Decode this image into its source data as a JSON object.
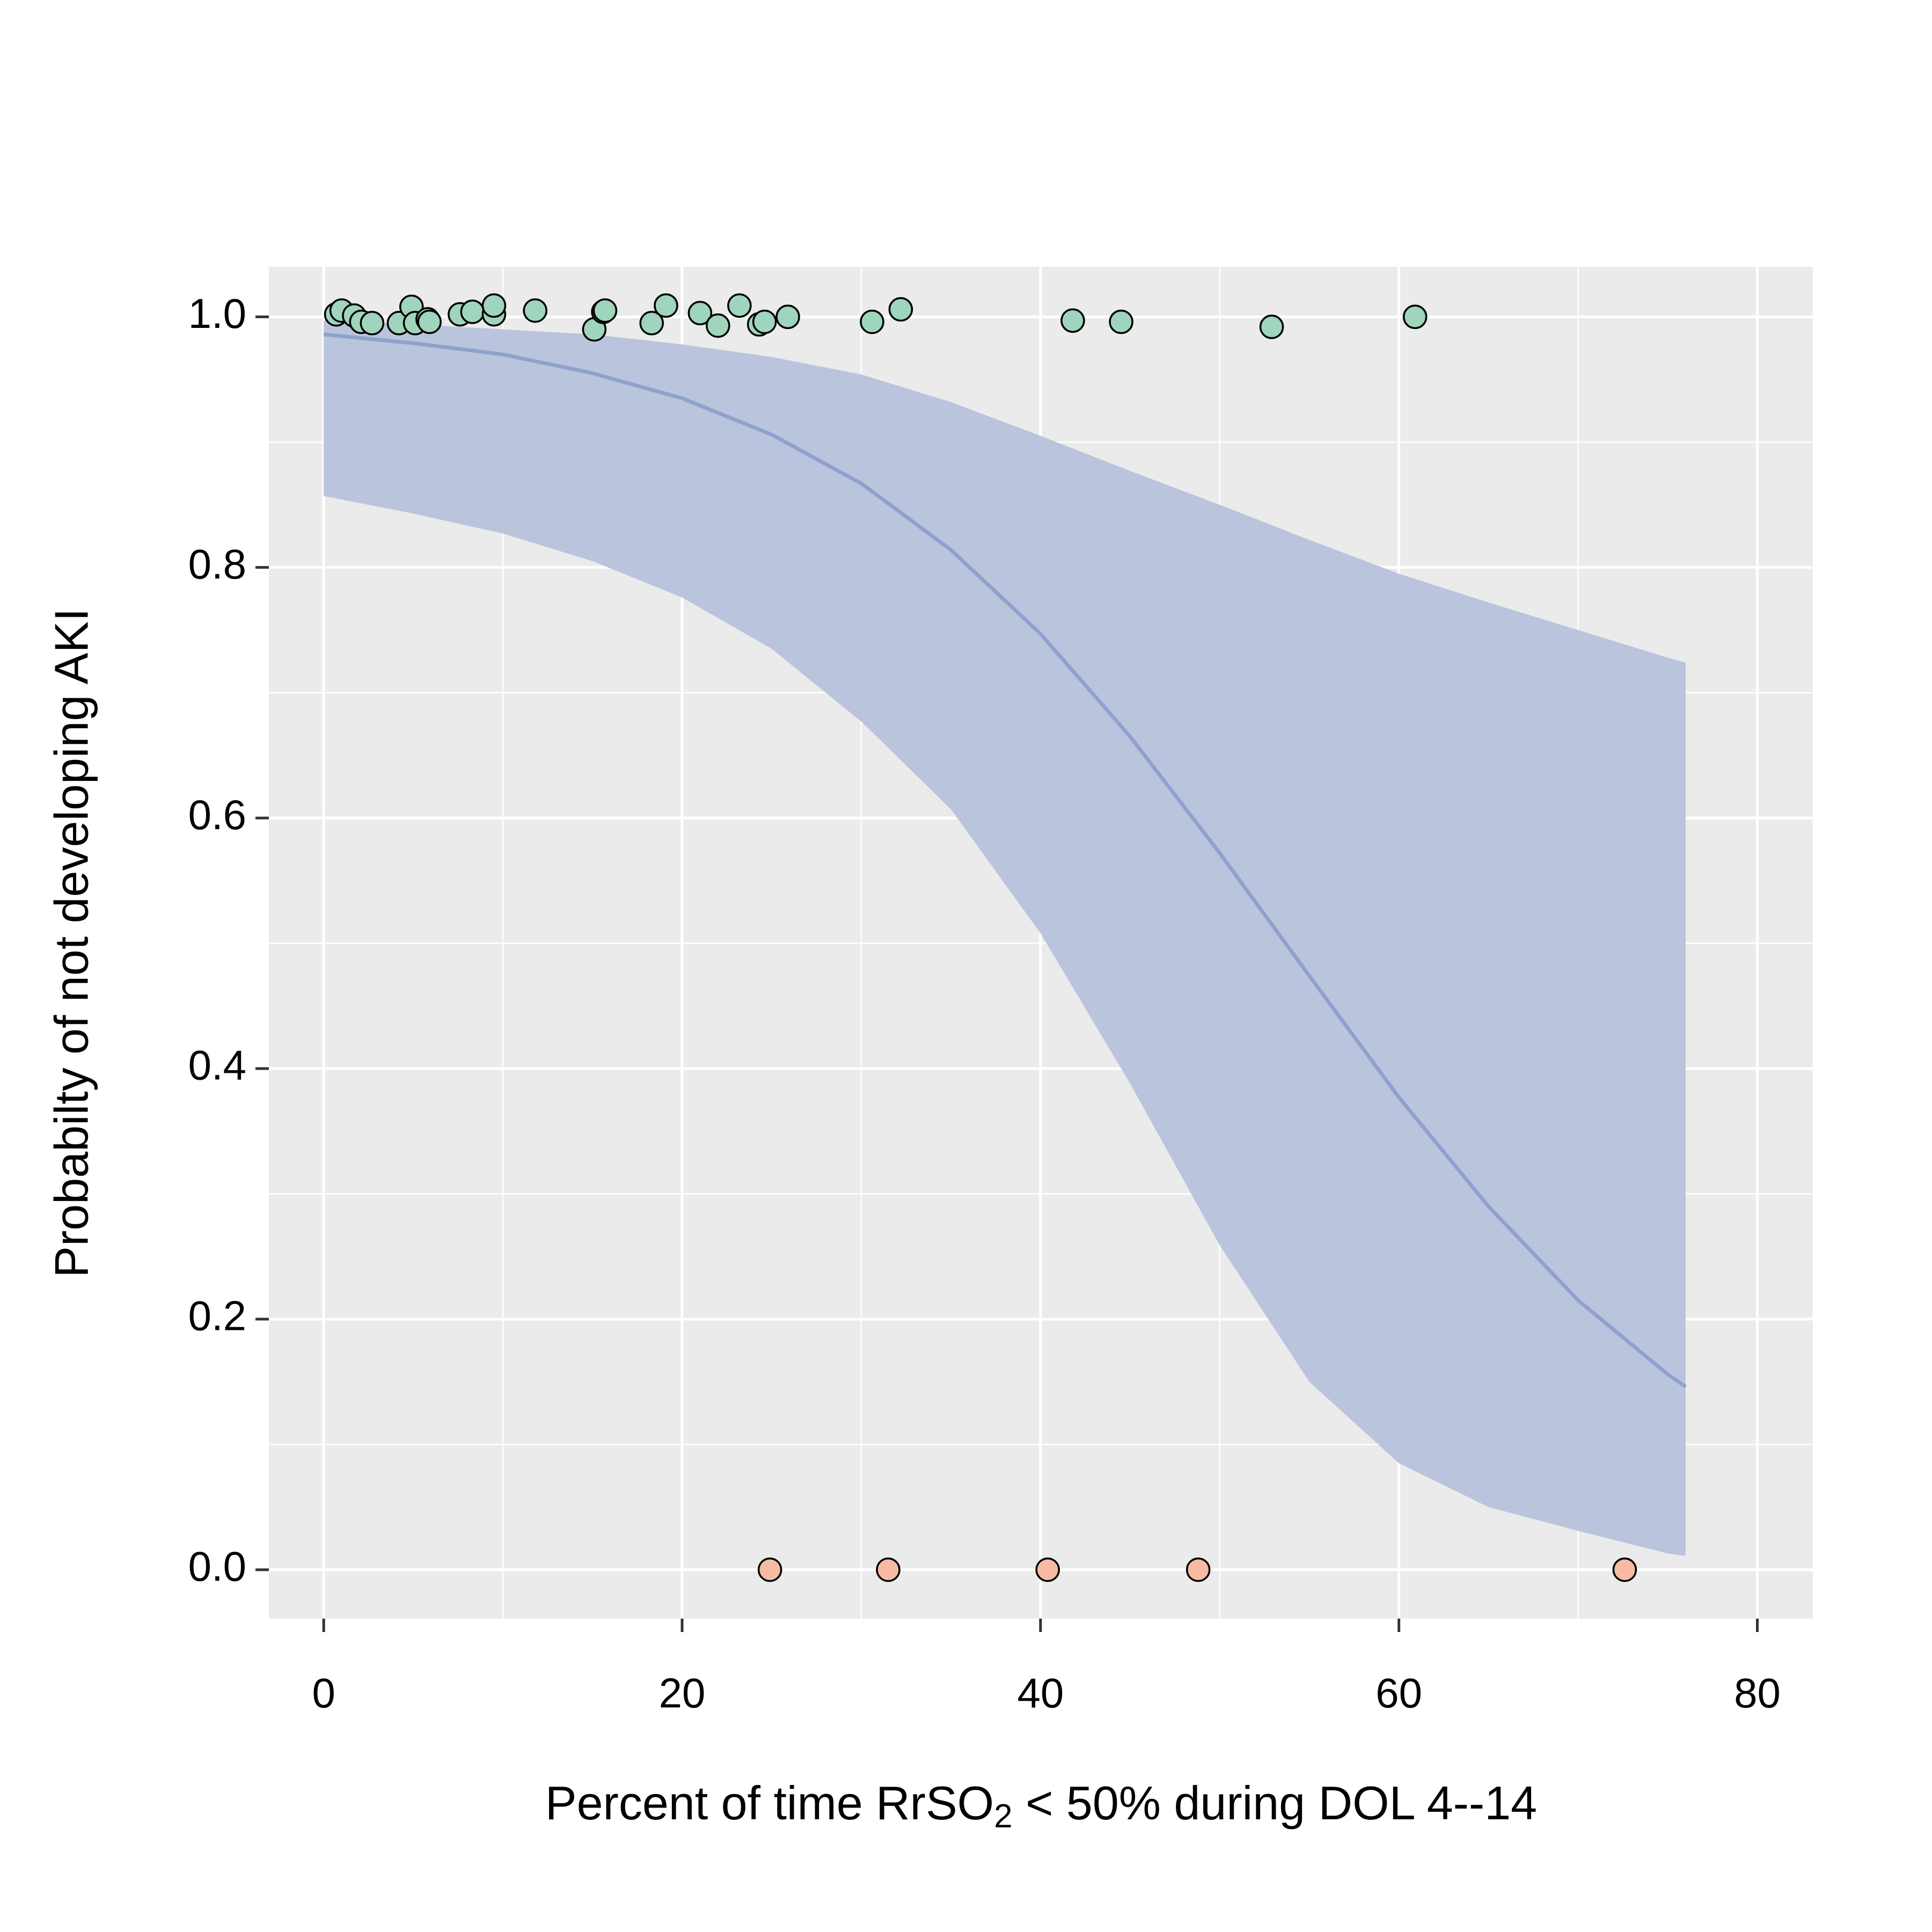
{
  "chart_data": {
    "type": "scatter",
    "x_label": [
      "Percent of time RrSO",
      "2",
      " < 50% during DOL 4--14"
    ],
    "y_label": "Probabilty of not developing AKI",
    "xlim": [
      -3.06,
      83.1
    ],
    "ylim": [
      -0.039,
      1.04
    ],
    "xticks": [
      0,
      20,
      40,
      60,
      80
    ],
    "yticks": [
      {
        "value": 0,
        "label": "0.0"
      },
      {
        "value": 0.2,
        "label": "0.2"
      },
      {
        "value": 0.4,
        "label": "0.4"
      },
      {
        "value": 0.6,
        "label": "0.6"
      },
      {
        "value": 0.8,
        "label": "0.8"
      },
      {
        "value": 1,
        "label": "1.0"
      }
    ],
    "xminor_ticks": [
      10,
      30,
      50,
      70
    ],
    "yminor_ticks": [
      0.1,
      0.3,
      0.5,
      0.7,
      0.9
    ],
    "grid": true,
    "series": [
      {
        "color": "#9fd4bd",
        "x": [
          0.7,
          1.0,
          1.7,
          2.1,
          2.7,
          4.2,
          4.9,
          5.1,
          5.8,
          5.9,
          7.6,
          8.3,
          9.5,
          9.5,
          11.8,
          15.1,
          15.6,
          15.7,
          18.3,
          19.1,
          21.0,
          22.0,
          23.2,
          24.3,
          24.6,
          25.9,
          30.6,
          32.2,
          41.8,
          44.5,
          52.9,
          60.9
        ],
        "values": [
          1.002,
          1.005,
          1.001,
          0.996,
          0.995,
          0.995,
          1.008,
          0.995,
          0.998,
          0.996,
          1.002,
          1.004,
          1.002,
          1.009,
          1.005,
          0.99,
          1.004,
          1.005,
          0.995,
          1.009,
          1.003,
          0.993,
          1.009,
          0.994,
          0.996,
          1.0,
          0.996,
          1.006,
          0.997,
          0.996,
          0.992,
          1.0
        ]
      },
      {
        "color": "#f6bba3",
        "x": [
          24.9,
          31.5,
          40.4,
          48.8,
          72.6
        ],
        "values": [
          0,
          0,
          0,
          0,
          0
        ]
      }
    ],
    "fit": {
      "color": "#8fa1cc",
      "band_color": "#bac4dd",
      "x": [
        0,
        5,
        10,
        15,
        20,
        25,
        30,
        35,
        40,
        45,
        50,
        55,
        60,
        65,
        70,
        75,
        76
      ],
      "values": [
        0.986,
        0.979,
        0.97,
        0.955,
        0.935,
        0.906,
        0.867,
        0.814,
        0.747,
        0.665,
        0.572,
        0.474,
        0.377,
        0.29,
        0.215,
        0.156,
        0.146
      ],
      "lower": [
        0.857,
        0.843,
        0.827,
        0.805,
        0.776,
        0.735,
        0.677,
        0.607,
        0.508,
        0.388,
        0.259,
        0.15,
        0.085,
        0.05,
        0.031,
        0.013,
        0.011
      ],
      "upper": [
        0.997,
        0.994,
        0.99,
        0.986,
        0.978,
        0.968,
        0.954,
        0.932,
        0.905,
        0.877,
        0.85,
        0.822,
        0.795,
        0.772,
        0.75,
        0.728,
        0.724
      ]
    }
  }
}
